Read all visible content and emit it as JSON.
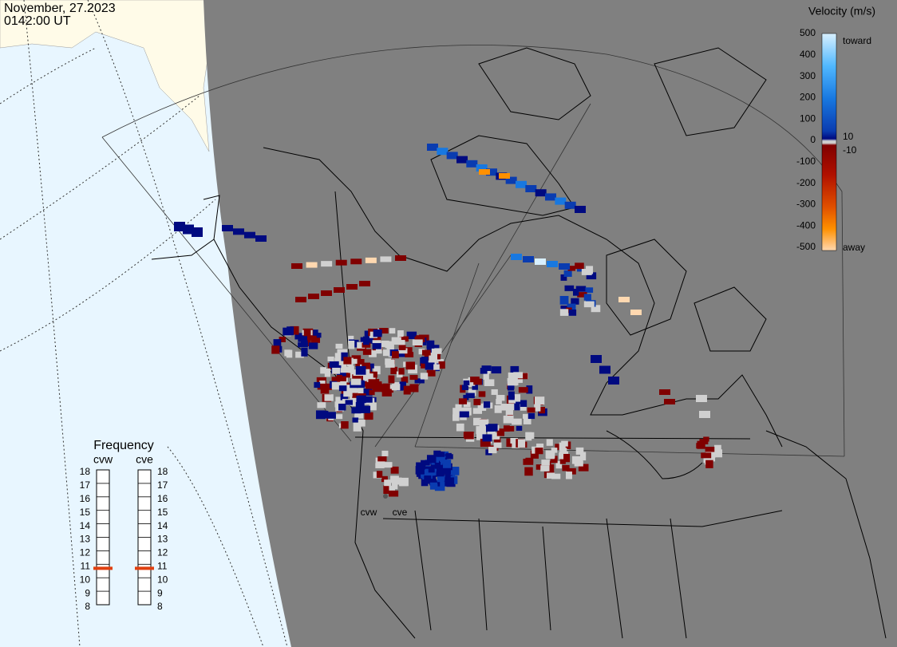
{
  "header": {
    "date": "November, 27.2023",
    "time": "0142:00 UT"
  },
  "velocity_scale": {
    "title": "Velocity (m/s)",
    "ticks": [
      "500",
      "400",
      "300",
      "200",
      "100",
      "0",
      "-100",
      "-200",
      "-300",
      "-400",
      "-500"
    ],
    "inner_labels": [
      "10",
      "-10"
    ],
    "toward": "toward",
    "away": "away"
  },
  "frequency": {
    "title": "Frequency",
    "scale": [
      18,
      17,
      16,
      15,
      14,
      13,
      12,
      11,
      10,
      9,
      8
    ],
    "radars": [
      {
        "name": "cvw",
        "value": 10.7
      },
      {
        "name": "cve",
        "value": 10.7
      }
    ]
  },
  "map_labels": [
    "cvw",
    "cve"
  ]
}
